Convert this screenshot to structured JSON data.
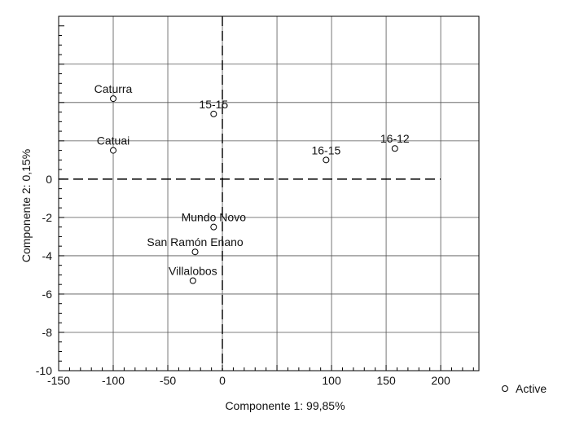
{
  "chart_data": {
    "type": "scatter",
    "xlabel": "Componente 1: 99,85%",
    "ylabel": "Componente 2: 0,15%",
    "xlim": [
      -150,
      235
    ],
    "ylim": [
      -10,
      8.5
    ],
    "x_ticks": [
      -150,
      -100,
      -50,
      0,
      100,
      150,
      200
    ],
    "x_tick_labels": [
      "-150",
      "-100",
      "-50",
      "0",
      "100",
      "150",
      "200"
    ],
    "x_grid": [
      -150,
      -100,
      -50,
      0,
      50,
      100,
      150,
      200
    ],
    "y_ticks": [
      -10,
      -8,
      -6,
      -4,
      -2,
      0
    ],
    "y_tick_labels": [
      "-10",
      "-8",
      "-6",
      "-4",
      "-2",
      "0"
    ],
    "y_grid": [
      -10,
      -8,
      -6,
      -4,
      -2,
      2,
      4,
      6
    ],
    "grid": true,
    "reference_lines": {
      "x": 0,
      "y": 0,
      "style": "dashed"
    },
    "series": [
      {
        "name": "Active",
        "marker": "open-circle",
        "points": [
          {
            "label": "Caturra",
            "x": -100,
            "y": 4.2
          },
          {
            "label": "15-15",
            "x": -8,
            "y": 3.4
          },
          {
            "label": "Catuai",
            "x": -100,
            "y": 1.5
          },
          {
            "label": "16-15",
            "x": 95,
            "y": 1.0
          },
          {
            "label": "16-12",
            "x": 158,
            "y": 1.6
          },
          {
            "label": "Mundo Novo",
            "x": -8,
            "y": -2.5
          },
          {
            "label": "San Ramón Enano",
            "x": -25,
            "y": -3.8
          },
          {
            "label": "Villalobos",
            "x": -27,
            "y": -5.3
          }
        ]
      }
    ],
    "legend": {
      "position": "right",
      "entries": [
        "Active"
      ]
    }
  }
}
